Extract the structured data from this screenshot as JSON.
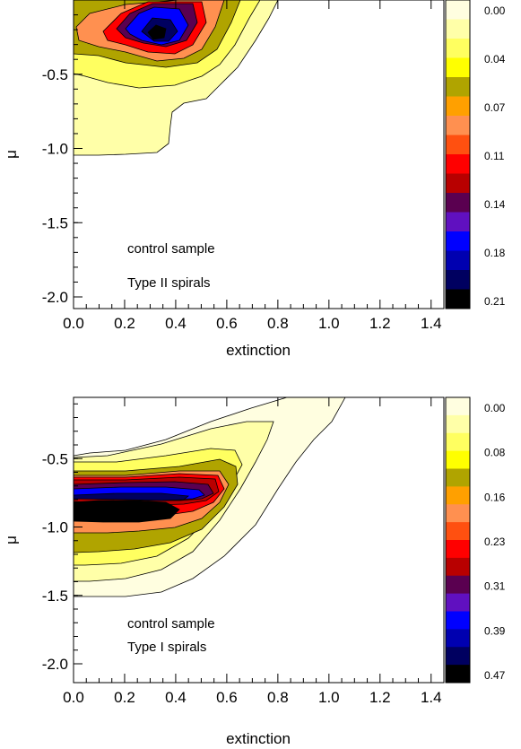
{
  "chart_data": [
    {
      "type": "contour",
      "xlabel": "extinction",
      "ylabel": "μ",
      "xlim": [
        0.0,
        1.45
      ],
      "ylim": [
        -2.05,
        0.0
      ],
      "xticks": [
        0.0,
        0.2,
        0.4,
        0.6,
        0.8,
        1.0,
        1.2,
        1.4
      ],
      "xtick_labels": [
        "0.0",
        "0.2",
        "0.4",
        "0.6",
        "0.8",
        "1.0",
        "1.2",
        "1.4"
      ],
      "yticks": [
        -0.5,
        -1.0,
        -1.5,
        -2.0
      ],
      "ytick_labels": [
        "-0.5",
        "-1.0",
        "-1.5",
        "-2.0"
      ],
      "annotations": [
        "control sample",
        "Type II spirals"
      ],
      "colorbar": {
        "labels": [
          "0.00",
          "0.04",
          "0.07",
          "0.11",
          "0.14",
          "0.18",
          "0.21"
        ],
        "colors": [
          "#fffee0",
          "#ffffa8",
          "#ffff60",
          "#ffff00",
          "#b0a400",
          "#ffa000",
          "#ff9050",
          "#ff5010",
          "#ff0000",
          "#b80000",
          "#5a0050",
          "#6010c0",
          "#0000ff",
          "#0000b0",
          "#000060",
          "#000000"
        ]
      },
      "contour_peak": {
        "x": 0.3,
        "y": -0.25,
        "value": 0.21
      }
    },
    {
      "type": "contour",
      "xlabel": "extinction",
      "ylabel": "μ",
      "xlim": [
        0.0,
        1.45
      ],
      "ylim": [
        -2.05,
        0.0
      ],
      "xticks": [
        0.0,
        0.2,
        0.4,
        0.6,
        0.8,
        1.0,
        1.2,
        1.4
      ],
      "xtick_labels": [
        "0.0",
        "0.2",
        "0.4",
        "0.6",
        "0.8",
        "1.0",
        "1.2",
        "1.4"
      ],
      "yticks": [
        -0.5,
        -1.0,
        -1.5,
        -2.0
      ],
      "ytick_labels": [
        "-0.5",
        "-1.0",
        "-1.5",
        "-2.0"
      ],
      "annotations": [
        "control sample",
        "Type I spirals"
      ],
      "colorbar": {
        "labels": [
          "0.00",
          "0.08",
          "0.16",
          "0.23",
          "0.31",
          "0.39",
          "0.47"
        ],
        "colors": [
          "#fffee0",
          "#ffffa8",
          "#ffff60",
          "#ffff00",
          "#b0a400",
          "#ffa000",
          "#ff9050",
          "#ff5010",
          "#ff0000",
          "#b80000",
          "#5a0050",
          "#6010c0",
          "#0000ff",
          "#0000b0",
          "#000060",
          "#000000"
        ]
      },
      "contour_peak": {
        "x": 0.25,
        "y": -0.85,
        "value": 0.47
      }
    }
  ]
}
